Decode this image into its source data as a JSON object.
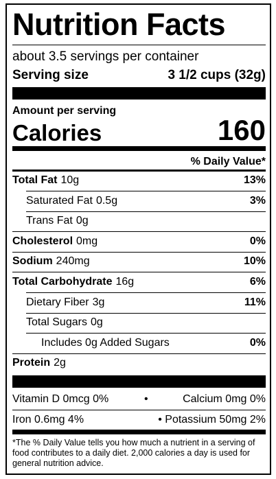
{
  "title": "Nutrition Facts",
  "servings": "about 3.5 servings per container",
  "serving_size": {
    "label": "Serving size",
    "value": "3 1/2 cups (32g)"
  },
  "amount_per_serving": "Amount per serving",
  "calories": {
    "label": "Calories",
    "value": "160"
  },
  "daily_value_header": "% Daily Value*",
  "nutrients": [
    {
      "name": "Total Fat",
      "amount": "10g",
      "daily_value": "13%"
    },
    {
      "name": "Saturated Fat",
      "amount": "0.5g",
      "daily_value": "3%"
    },
    {
      "name": "Trans Fat",
      "amount": "0g"
    },
    {
      "name": "Cholesterol",
      "amount": "0mg",
      "daily_value": "0%"
    },
    {
      "name": "Sodium",
      "amount": "240mg",
      "daily_value": "10%"
    },
    {
      "name": "Total Carbohydrate",
      "amount": "16g",
      "daily_value": "6%"
    },
    {
      "name": "Dietary Fiber",
      "amount": "3g",
      "daily_value": "11%"
    },
    {
      "name": "Total Sugars",
      "amount": "0g"
    },
    {
      "name": "Includes 0g Added Sugars",
      "daily_value": "0%"
    },
    {
      "name": "Protein",
      "amount": "2g"
    }
  ],
  "vitamins": [
    [
      "Vitamin D 0mcg 0%",
      "•",
      "Calcium 0mg 0%"
    ],
    [
      "Iron 0.6mg 4%",
      "• Potassium 50mg 2%"
    ]
  ],
  "footnote": "*The % Daily Value tells you how much a nutrient in a serving of food contributes to a daily diet. 2,000 calories a day is used for general nutrition advice."
}
